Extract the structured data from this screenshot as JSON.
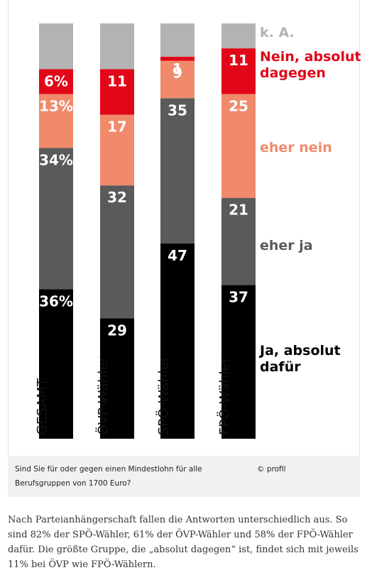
{
  "chart_data": {
    "type": "bar",
    "stacked": true,
    "orientation": "vertical",
    "normalized_to_100": true,
    "categories": [
      "GESAMT",
      "ÖVP-Wähler",
      "SPÖ-Wähler",
      "FPÖ-Wähler"
    ],
    "series": [
      {
        "name": "Ja, absolut dafür",
        "color": "#000000",
        "label_color": "#ffffff",
        "values": [
          36,
          29,
          47,
          37
        ],
        "labels": [
          "36%",
          "29",
          "47",
          "37"
        ]
      },
      {
        "name": "eher ja",
        "color": "#5a5a5a",
        "label_color": "#ffffff",
        "values": [
          34,
          32,
          35,
          21
        ],
        "labels": [
          "34%",
          "32",
          "35",
          "21"
        ]
      },
      {
        "name": "eher nein",
        "color": "#f08a6b",
        "label_color": "#ffffff",
        "values": [
          13,
          17,
          9,
          25
        ],
        "labels": [
          "13%",
          "17",
          "9",
          "25"
        ]
      },
      {
        "name": "Nein, absolut dagegen",
        "color": "#e10718",
        "label_color": "#ffffff",
        "values": [
          6,
          11,
          1,
          11
        ],
        "labels": [
          "6%",
          "11",
          "1",
          "11"
        ]
      },
      {
        "name": "k. A.",
        "color": "#b3b3b3",
        "label_color": "#ffffff",
        "values": [
          11,
          11,
          8,
          6
        ],
        "labels": [
          "",
          "",
          "",
          ""
        ]
      }
    ],
    "legend": [
      {
        "lines": [
          "k. A."
        ],
        "color": "#b3b3b3"
      },
      {
        "lines": [
          "Nein, absolut",
          "dagegen"
        ],
        "color": "#e10718"
      },
      {
        "lines": [
          "eher nein"
        ],
        "color": "#f08a6b"
      },
      {
        "lines": [
          "eher ja"
        ],
        "color": "#5a5a5a"
      },
      {
        "lines": [
          "Ja, absolut",
          "dafür"
        ],
        "color": "#000000"
      }
    ],
    "legend_placement": "right",
    "grid": false
  },
  "caption": {
    "question": "Sind Sie für oder gegen einen Mindestlohn für alle Berufsgruppen von 1700 Euro?",
    "credit": "© profil"
  },
  "article": {
    "paragraph": "Nach Parteianhängerschaft fallen die Antworten unterschiedlich aus. So sind 82% der SPÖ-Wähler, 61% der ÖVP-Wähler und 58% der FPÖ-Wähler dafür. Die größte Gruppe, die „absolut dagegen“ ist, findet sich mit jeweils 11% bei ÖVP wie FPÖ-Wählern."
  }
}
